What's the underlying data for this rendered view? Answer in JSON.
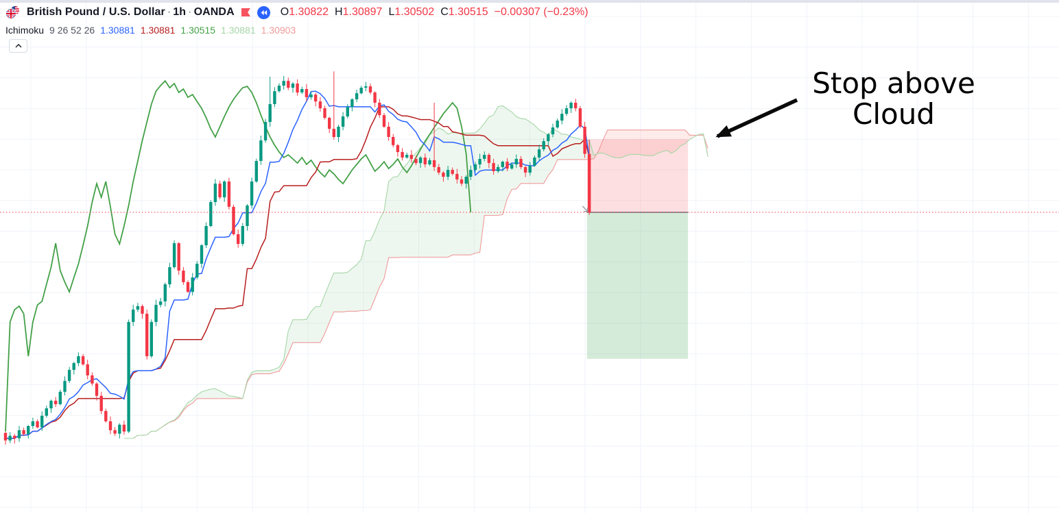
{
  "header": {
    "symbol_title": "British Pound / U.S. Dollar",
    "separator": "·",
    "timeframe": "1h",
    "exchange": "OANDA",
    "market_status_color": "#F7525F",
    "replay_color": "#2962FF",
    "ohlc": {
      "open_label": "O",
      "open": "1.30822",
      "high_label": "H",
      "high": "1.30897",
      "low_label": "L",
      "low": "1.30502",
      "close_label": "C",
      "close": "1.30515",
      "change": "−0.00307 (−0.23%)"
    }
  },
  "indicator": {
    "name": "Ichimoku",
    "params": "9 26 52 26",
    "values": [
      {
        "text": "1.30881",
        "color": "#2962FF"
      },
      {
        "text": "1.30881",
        "color": "#B71C1C"
      },
      {
        "text": "1.30515",
        "color": "#43A047"
      },
      {
        "text": "1.30881",
        "color": "#A5D6A7"
      },
      {
        "text": "1.30903",
        "color": "#EF9A9A"
      }
    ]
  },
  "annotation": {
    "text": "Stop above Cloud"
  },
  "icons": {
    "pair_logo": "gbpusd-pair-icon",
    "market_status": "flag-icon",
    "replay": "fast-rewind-icon",
    "collapse": "chevron-up-icon",
    "entry_marker": "arrow-down-right-icon",
    "annotation_arrow": "arrow-down-left-icon"
  },
  "chart_data": {
    "type": "candlestick",
    "symbol": "GBPUSD",
    "interval": "1h",
    "indicator": "Ichimoku Cloud",
    "ichimoku_params": {
      "conversion": 9,
      "base": 26,
      "leading_b": 52,
      "displacement": 26
    },
    "legend_position": "top-left",
    "grid": true,
    "price_range": {
      "top": 1.31631,
      "bottom": 1.28935
    },
    "closes": [
      1.29316,
      1.29341,
      1.29327,
      1.2937,
      1.29349,
      1.29392,
      1.29417,
      1.29385,
      1.29446,
      1.29485,
      1.29525,
      1.29507,
      1.29572,
      1.29629,
      1.29687,
      1.29723,
      1.29759,
      1.29716,
      1.29658,
      1.29615,
      1.29551,
      1.29471,
      1.29417,
      1.2937,
      1.29352,
      1.29399,
      1.29363,
      1.29939,
      1.30004,
      1.30022,
      1.29982,
      1.29759,
      1.29939,
      1.30029,
      1.30047,
      1.30137,
      1.30227,
      1.30353,
      1.30209,
      1.30148,
      1.30097,
      1.30173,
      1.30245,
      1.30342,
      1.30443,
      1.30569,
      1.30666,
      1.30594,
      1.30677,
      1.30544,
      1.304,
      1.30349,
      1.30443,
      1.30551,
      1.30677,
      1.30785,
      1.30893,
      1.3099,
      1.31084,
      1.31152,
      1.31181,
      1.31206,
      1.3117,
      1.31192,
      1.31145,
      1.31163,
      1.3112,
      1.31134,
      1.31098,
      1.31062,
      1.31012,
      1.30954,
      1.30911,
      1.30965,
      1.31019,
      1.31069,
      1.31109,
      1.31141,
      1.3117,
      1.31177,
      1.31145,
      1.31091,
      1.31026,
      1.30965,
      1.30911,
      1.30868,
      1.30832,
      1.30803,
      1.30817,
      1.30796,
      1.30774,
      1.30803,
      1.30767,
      1.30789,
      1.30753,
      1.30724,
      1.30702,
      1.30738,
      1.30717,
      1.30688,
      1.30666,
      1.30702,
      1.30738,
      1.30767,
      1.30796,
      1.30817,
      1.30774,
      1.30731,
      1.30753,
      1.30781,
      1.30745,
      1.30767,
      1.30796,
      1.30753,
      1.30724,
      1.3076,
      1.30803,
      1.30846,
      1.30889,
      1.30925,
      1.30961,
      1.30997,
      1.31033,
      1.31062,
      1.31091,
      1.31062,
      1.30965,
      1.30822,
      1.30515
    ],
    "last_bar": {
      "o": 1.30822,
      "h": 1.30897,
      "l": 1.30502,
      "c": 1.30515
    },
    "wick_overrides": {
      "58": 1.31228,
      "72": 1.31256,
      "94": 1.31091
    },
    "position_tool": {
      "type": "short",
      "entry": 1.30515,
      "stop": 1.309,
      "target": 1.29745
    },
    "price_line": 1.30515,
    "colors": {
      "up": "#089981",
      "down": "#F23645",
      "tenkan": "#2962FF",
      "kijun": "#B71C1C",
      "chikou": "#43A047",
      "lead_a": "#A5D6A7",
      "lead_b": "#EF9A9A",
      "cloud_bull": "rgba(103,183,109,0.11)",
      "cloud_bear": "rgba(244,67,54,0.10)",
      "stop_fill": "rgba(242,54,69,0.16)",
      "profit_fill": "rgba(66,164,82,0.22)",
      "entry_line": "#6A6D78",
      "price_line": "#F23645",
      "grid": "#F0F3FA",
      "annotation": "#000000"
    }
  }
}
